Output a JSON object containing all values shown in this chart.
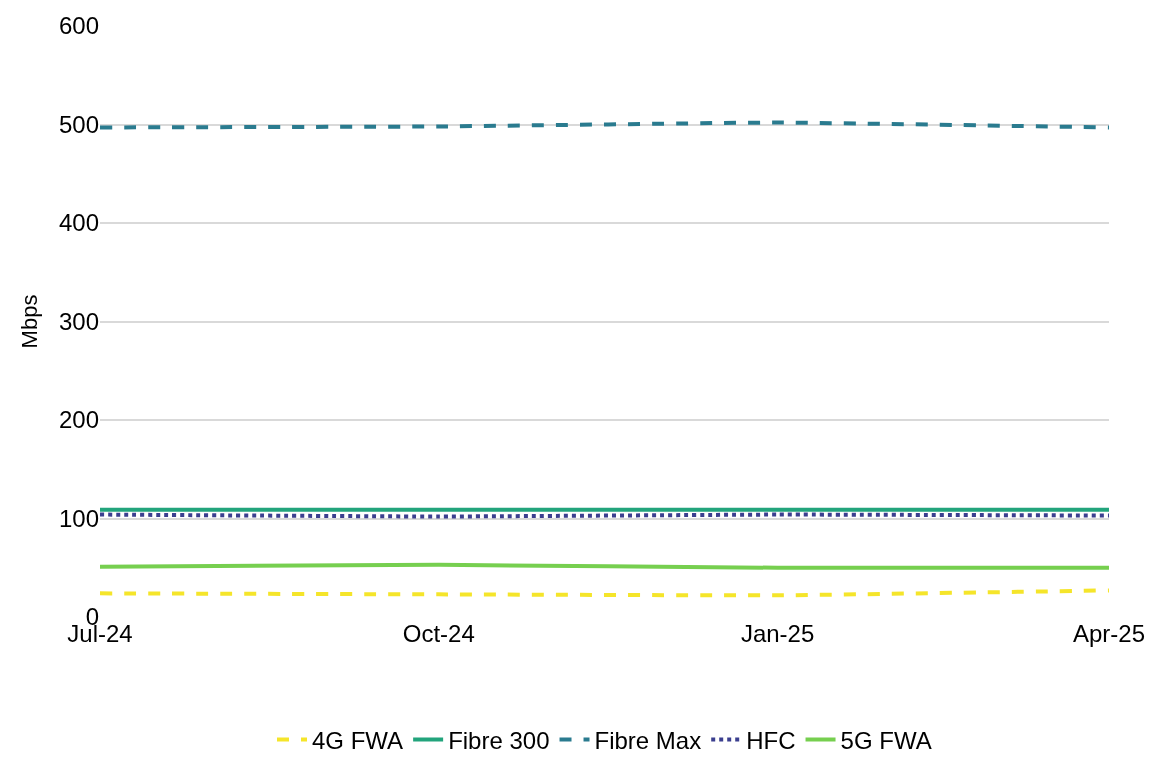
{
  "chart_data": {
    "type": "line",
    "ylabel": "Mbps",
    "x": [
      "2024-07",
      "2024-10",
      "2025-01",
      "2025-04"
    ],
    "xlim": [
      "2024-07",
      "2025-04"
    ],
    "xticks": [
      {
        "value": "2024-07",
        "label": "Jul-24"
      },
      {
        "value": "2024-10",
        "label": "Oct-24"
      },
      {
        "value": "2025-01",
        "label": "Jan-25"
      },
      {
        "value": "2025-04",
        "label": "Apr-25"
      }
    ],
    "ylim": [
      0,
      600
    ],
    "yticks": [
      0,
      100,
      200,
      300,
      400,
      500,
      600
    ],
    "grid": "y",
    "legend": "bottom",
    "marker": "none",
    "series": [
      {
        "name": "4G FWA",
        "color": "#f5e52a",
        "line_style": "dashed",
        "values": [
          24,
          23,
          22,
          27
        ]
      },
      {
        "name": "Fibre 300",
        "color": "#22a47c",
        "line_style": "solid",
        "values": [
          109,
          109,
          109,
          109
        ]
      },
      {
        "name": "Fibre Max",
        "color": "#2a7b8f",
        "line_style": "dashed",
        "values": [
          497,
          498,
          502,
          497
        ]
      },
      {
        "name": "HFC",
        "color": "#3b3f8f",
        "line_style": "dotted",
        "values": [
          104,
          102,
          104,
          103
        ]
      },
      {
        "name": "5G FWA",
        "color": "#76cf4f",
        "line_style": "solid",
        "values": [
          51,
          53,
          50,
          50
        ]
      }
    ]
  }
}
